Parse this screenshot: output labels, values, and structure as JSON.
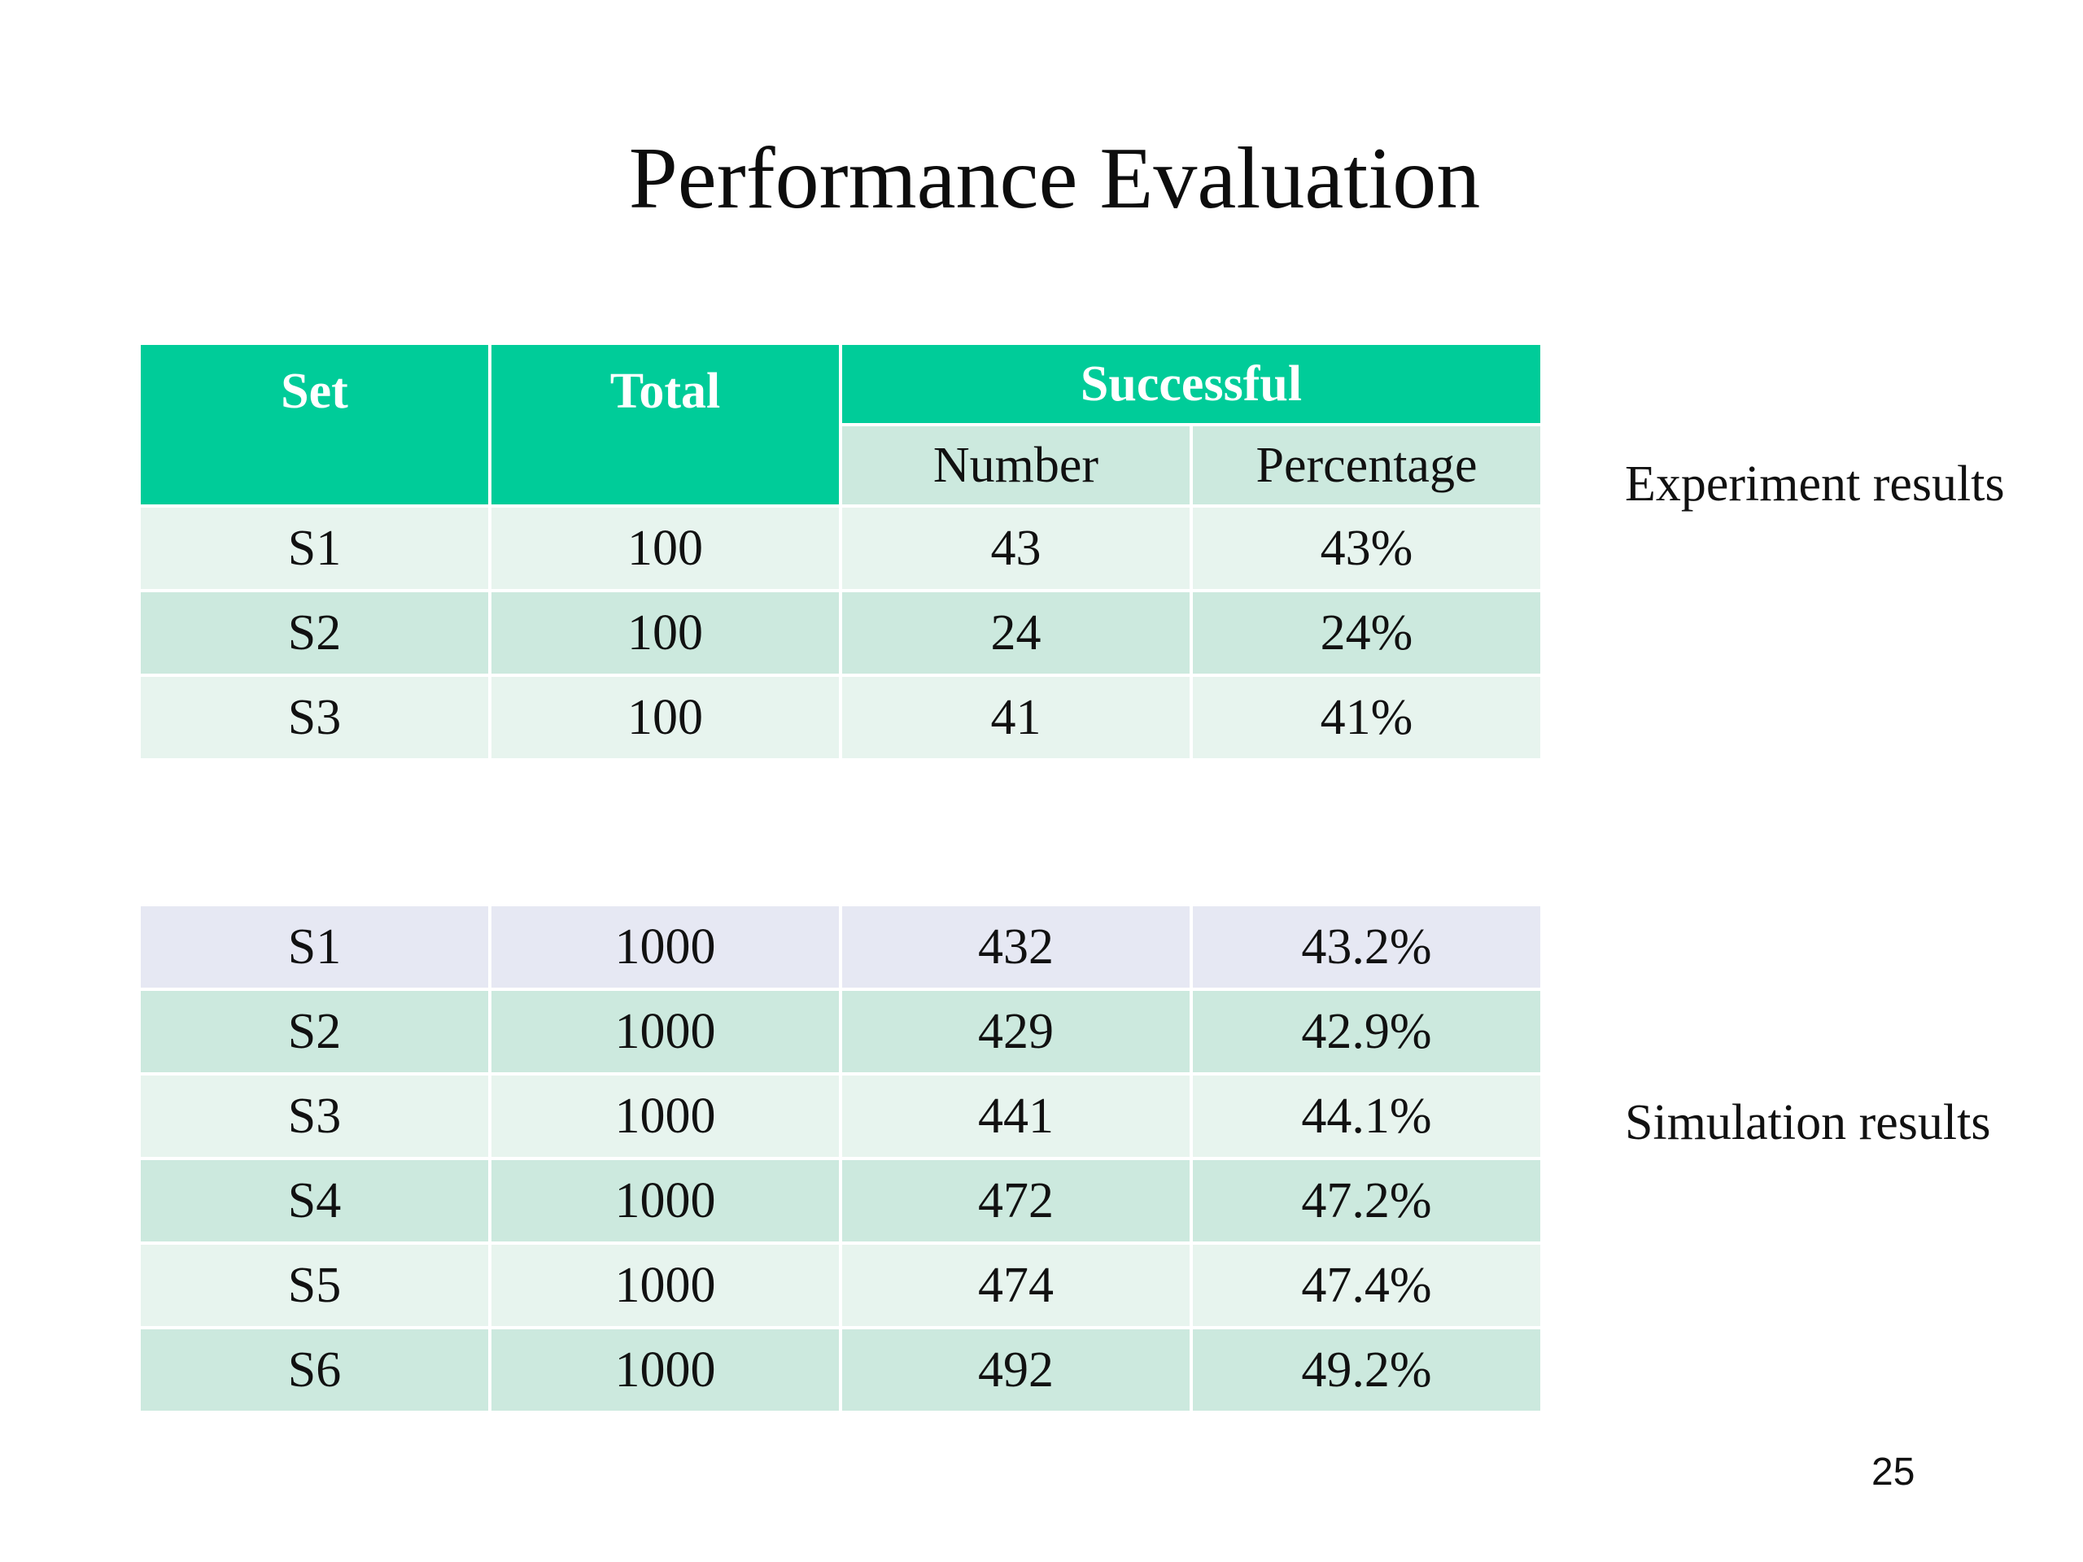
{
  "slide": {
    "title": "Performance Evaluation",
    "page_number": "25"
  },
  "experiment": {
    "label": "Experiment results",
    "headers": {
      "set": "Set",
      "total": "Total",
      "successful": "Successful",
      "number": "Number",
      "percentage": "Percentage"
    },
    "rows": [
      {
        "set": "S1",
        "total": "100",
        "number": "43",
        "percentage": "43%"
      },
      {
        "set": "S2",
        "total": "100",
        "number": "24",
        "percentage": "24%"
      },
      {
        "set": "S3",
        "total": "100",
        "number": "41",
        "percentage": "41%"
      }
    ]
  },
  "simulation": {
    "label": "Simulation results",
    "rows": [
      {
        "set": "S1",
        "total": "1000",
        "number": "432",
        "percentage": "43.2%"
      },
      {
        "set": "S2",
        "total": "1000",
        "number": "429",
        "percentage": "42.9%"
      },
      {
        "set": "S3",
        "total": "1000",
        "number": "441",
        "percentage": "44.1%"
      },
      {
        "set": "S4",
        "total": "1000",
        "number": "472",
        "percentage": "47.2%"
      },
      {
        "set": "S5",
        "total": "1000",
        "number": "474",
        "percentage": "47.4%"
      },
      {
        "set": "S6",
        "total": "1000",
        "number": "492",
        "percentage": "49.2%"
      }
    ]
  },
  "colors": {
    "header_green": "#00cc99",
    "row_light": "#e7f4ee",
    "row_dark": "#cce9de",
    "row_lavender": "#e6e8f3"
  }
}
